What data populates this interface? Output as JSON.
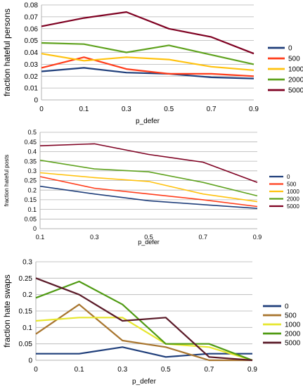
{
  "chart_data": [
    {
      "type": "line",
      "xlabel": "p_defer",
      "ylabel": "fraction hateful persons",
      "x": [
        "0",
        "0.1",
        "0.3",
        "0.5",
        "0.7",
        "0.9"
      ],
      "ylim": [
        0,
        0.08
      ],
      "yticks": [
        "0",
        "0.01",
        "0.02",
        "0.03",
        "0.04",
        "0.05",
        "0.06",
        "0.07",
        "0.08"
      ],
      "grid": true,
      "legend": "right",
      "series": [
        {
          "name": "0",
          "color": "#1f3e7a",
          "values": [
            0.024,
            0.027,
            0.023,
            0.022,
            0.019,
            0.018
          ]
        },
        {
          "name": "500",
          "color": "#ff3c1a",
          "values": [
            0.027,
            0.036,
            0.026,
            0.022,
            0.022,
            0.02
          ]
        },
        {
          "name": "1000",
          "color": "#ffc20e",
          "values": [
            0.039,
            0.033,
            0.036,
            0.034,
            0.028,
            0.025
          ]
        },
        {
          "name": "2000",
          "color": "#5fa21e",
          "values": [
            0.048,
            0.047,
            0.04,
            0.046,
            0.038,
            0.03
          ]
        },
        {
          "name": "5000",
          "color": "#7e0021",
          "values": [
            0.062,
            0.069,
            0.074,
            0.06,
            0.053,
            0.039
          ]
        }
      ]
    },
    {
      "type": "line",
      "xlabel": "p_defer",
      "ylabel": "fraction hateful posts",
      "x": [
        "0.1",
        "0.3",
        "0.5",
        "0.7",
        "0.9"
      ],
      "ylim": [
        0,
        0.5
      ],
      "yticks": [
        "0",
        "0.05",
        "0.1",
        "0.15",
        "0.2",
        "0.25",
        "0.3",
        "0.35",
        "0.4",
        "0.45",
        "0.5"
      ],
      "grid": true,
      "legend": "right",
      "series": [
        {
          "name": "0",
          "color": "#1f3e7a",
          "values": [
            0.22,
            0.18,
            0.145,
            0.125,
            0.105
          ]
        },
        {
          "name": "500",
          "color": "#ff3c1a",
          "values": [
            0.27,
            0.21,
            0.18,
            0.15,
            0.115
          ]
        },
        {
          "name": "1000",
          "color": "#ffc20e",
          "values": [
            0.29,
            0.265,
            0.245,
            0.18,
            0.14
          ]
        },
        {
          "name": "2000",
          "color": "#5fa21e",
          "values": [
            0.355,
            0.31,
            0.295,
            0.24,
            0.17
          ]
        },
        {
          "name": "5000",
          "color": "#7e0021",
          "values": [
            0.43,
            0.44,
            0.385,
            0.345,
            0.24
          ]
        }
      ]
    },
    {
      "type": "line",
      "xlabel": "p_defer",
      "ylabel": "fraction hate swaps",
      "x": [
        "0",
        "0.1",
        "0.3",
        "0.5",
        "0.7",
        "0.9"
      ],
      "ylim": [
        0,
        0.3
      ],
      "yticks": [
        "0",
        "0.05",
        "0.1",
        "0.15",
        "0.2",
        "0.25",
        "0.3"
      ],
      "grid": true,
      "legend": "right",
      "series": [
        {
          "name": "0",
          "color": "#1f3e7a",
          "values": [
            0.02,
            0.02,
            0.04,
            0.01,
            0.02,
            0.02
          ]
        },
        {
          "name": "500",
          "color": "#a8752e",
          "values": [
            0.08,
            0.17,
            0.06,
            0.04,
            0.0,
            0.0
          ]
        },
        {
          "name": "1000",
          "color": "#e6e62e",
          "values": [
            0.12,
            0.13,
            0.13,
            0.05,
            0.04,
            0.0
          ]
        },
        {
          "name": "2000",
          "color": "#4f9a12",
          "values": [
            0.19,
            0.24,
            0.17,
            0.05,
            0.05,
            0.0
          ]
        },
        {
          "name": "5000",
          "color": "#5a1a28",
          "values": [
            0.25,
            0.2,
            0.12,
            0.13,
            0.01,
            0.0
          ]
        }
      ]
    }
  ]
}
